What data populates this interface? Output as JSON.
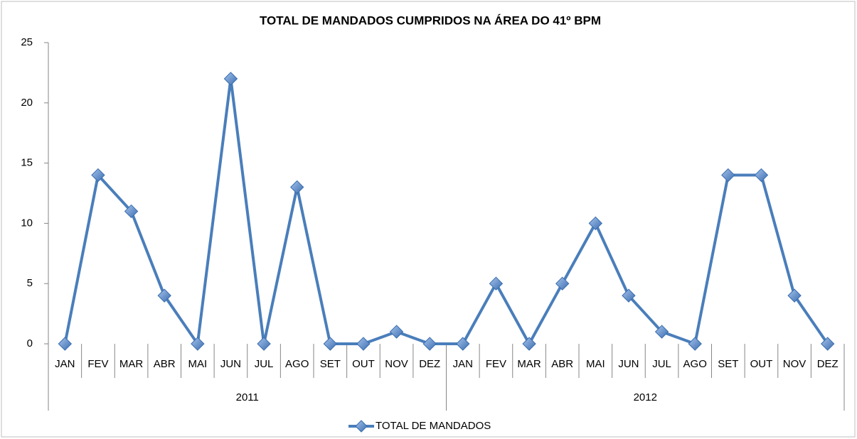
{
  "chart_data": {
    "type": "line",
    "title": "TOTAL DE MANDADOS CUMPRIDOS NA ÁREA DO 41º BPM",
    "categories": [
      "JAN",
      "FEV",
      "MAR",
      "ABR",
      "MAI",
      "JUN",
      "JUL",
      "AGO",
      "SET",
      "OUT",
      "NOV",
      "DEZ",
      "JAN",
      "FEV",
      "MAR",
      "ABR",
      "MAI",
      "JUN",
      "JUL",
      "AGO",
      "SET",
      "OUT",
      "NOV",
      "DEZ"
    ],
    "category_groups": [
      "2011",
      "2012"
    ],
    "series": [
      {
        "name": "TOTAL DE MANDADOS",
        "color": "#4a7ebb",
        "values": [
          0,
          14,
          11,
          4,
          0,
          22,
          0,
          13,
          0,
          0,
          1,
          0,
          0,
          5,
          0,
          5,
          10,
          4,
          1,
          0,
          14,
          14,
          4,
          0
        ]
      }
    ],
    "ylim": [
      0,
      25
    ],
    "yticks": [
      0,
      5,
      10,
      15,
      20,
      25
    ],
    "grid": false,
    "legend": "bottom"
  }
}
